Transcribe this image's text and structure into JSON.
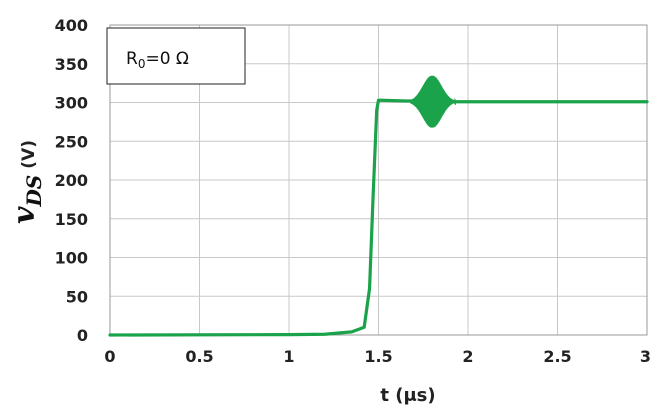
{
  "chart_data": {
    "type": "line",
    "title": "",
    "xlabel": "t (μs)",
    "ylabel": {
      "symbol": "v",
      "subscript": "DS",
      "unit": "(V)"
    },
    "xlim": [
      0,
      3
    ],
    "ylim": [
      0,
      400
    ],
    "x_ticks": [
      0,
      0.5,
      1,
      1.5,
      2,
      2.5,
      3
    ],
    "x_tick_labels": [
      "0",
      "0.5",
      "1",
      "1.5",
      "2",
      "2.5",
      "3"
    ],
    "y_ticks": [
      0,
      50,
      100,
      150,
      200,
      250,
      300,
      350,
      400
    ],
    "y_tick_labels": [
      "0",
      "50",
      "100",
      "150",
      "200",
      "250",
      "300",
      "350",
      "400"
    ],
    "grid": true,
    "annotation": {
      "label_prefix": "R",
      "label_sub": "0",
      "label_rest": "=0 Ω",
      "placement": "top-left"
    },
    "series": [
      {
        "color": "#1aa34a",
        "x": [
          0,
          1.0,
          1.2,
          1.35,
          1.42,
          1.45,
          1.47,
          1.49,
          1.5,
          1.65,
          1.7,
          1.72,
          1.75,
          1.78,
          1.8,
          1.82,
          1.85,
          1.88,
          1.9,
          1.93,
          2.0,
          2.5,
          3.0
        ],
        "y": [
          0,
          0.5,
          1,
          4,
          10,
          60,
          180,
          290,
          303,
          302,
          302,
          303,
          305,
          315,
          320,
          315,
          305,
          302,
          301,
          301,
          301,
          301,
          301
        ]
      }
    ],
    "oscillation": {
      "center_x": 1.8,
      "start_x": 1.68,
      "end_x": 1.93,
      "center_y": 301,
      "amplitude": 34,
      "frequency_per_us": 400
    }
  }
}
